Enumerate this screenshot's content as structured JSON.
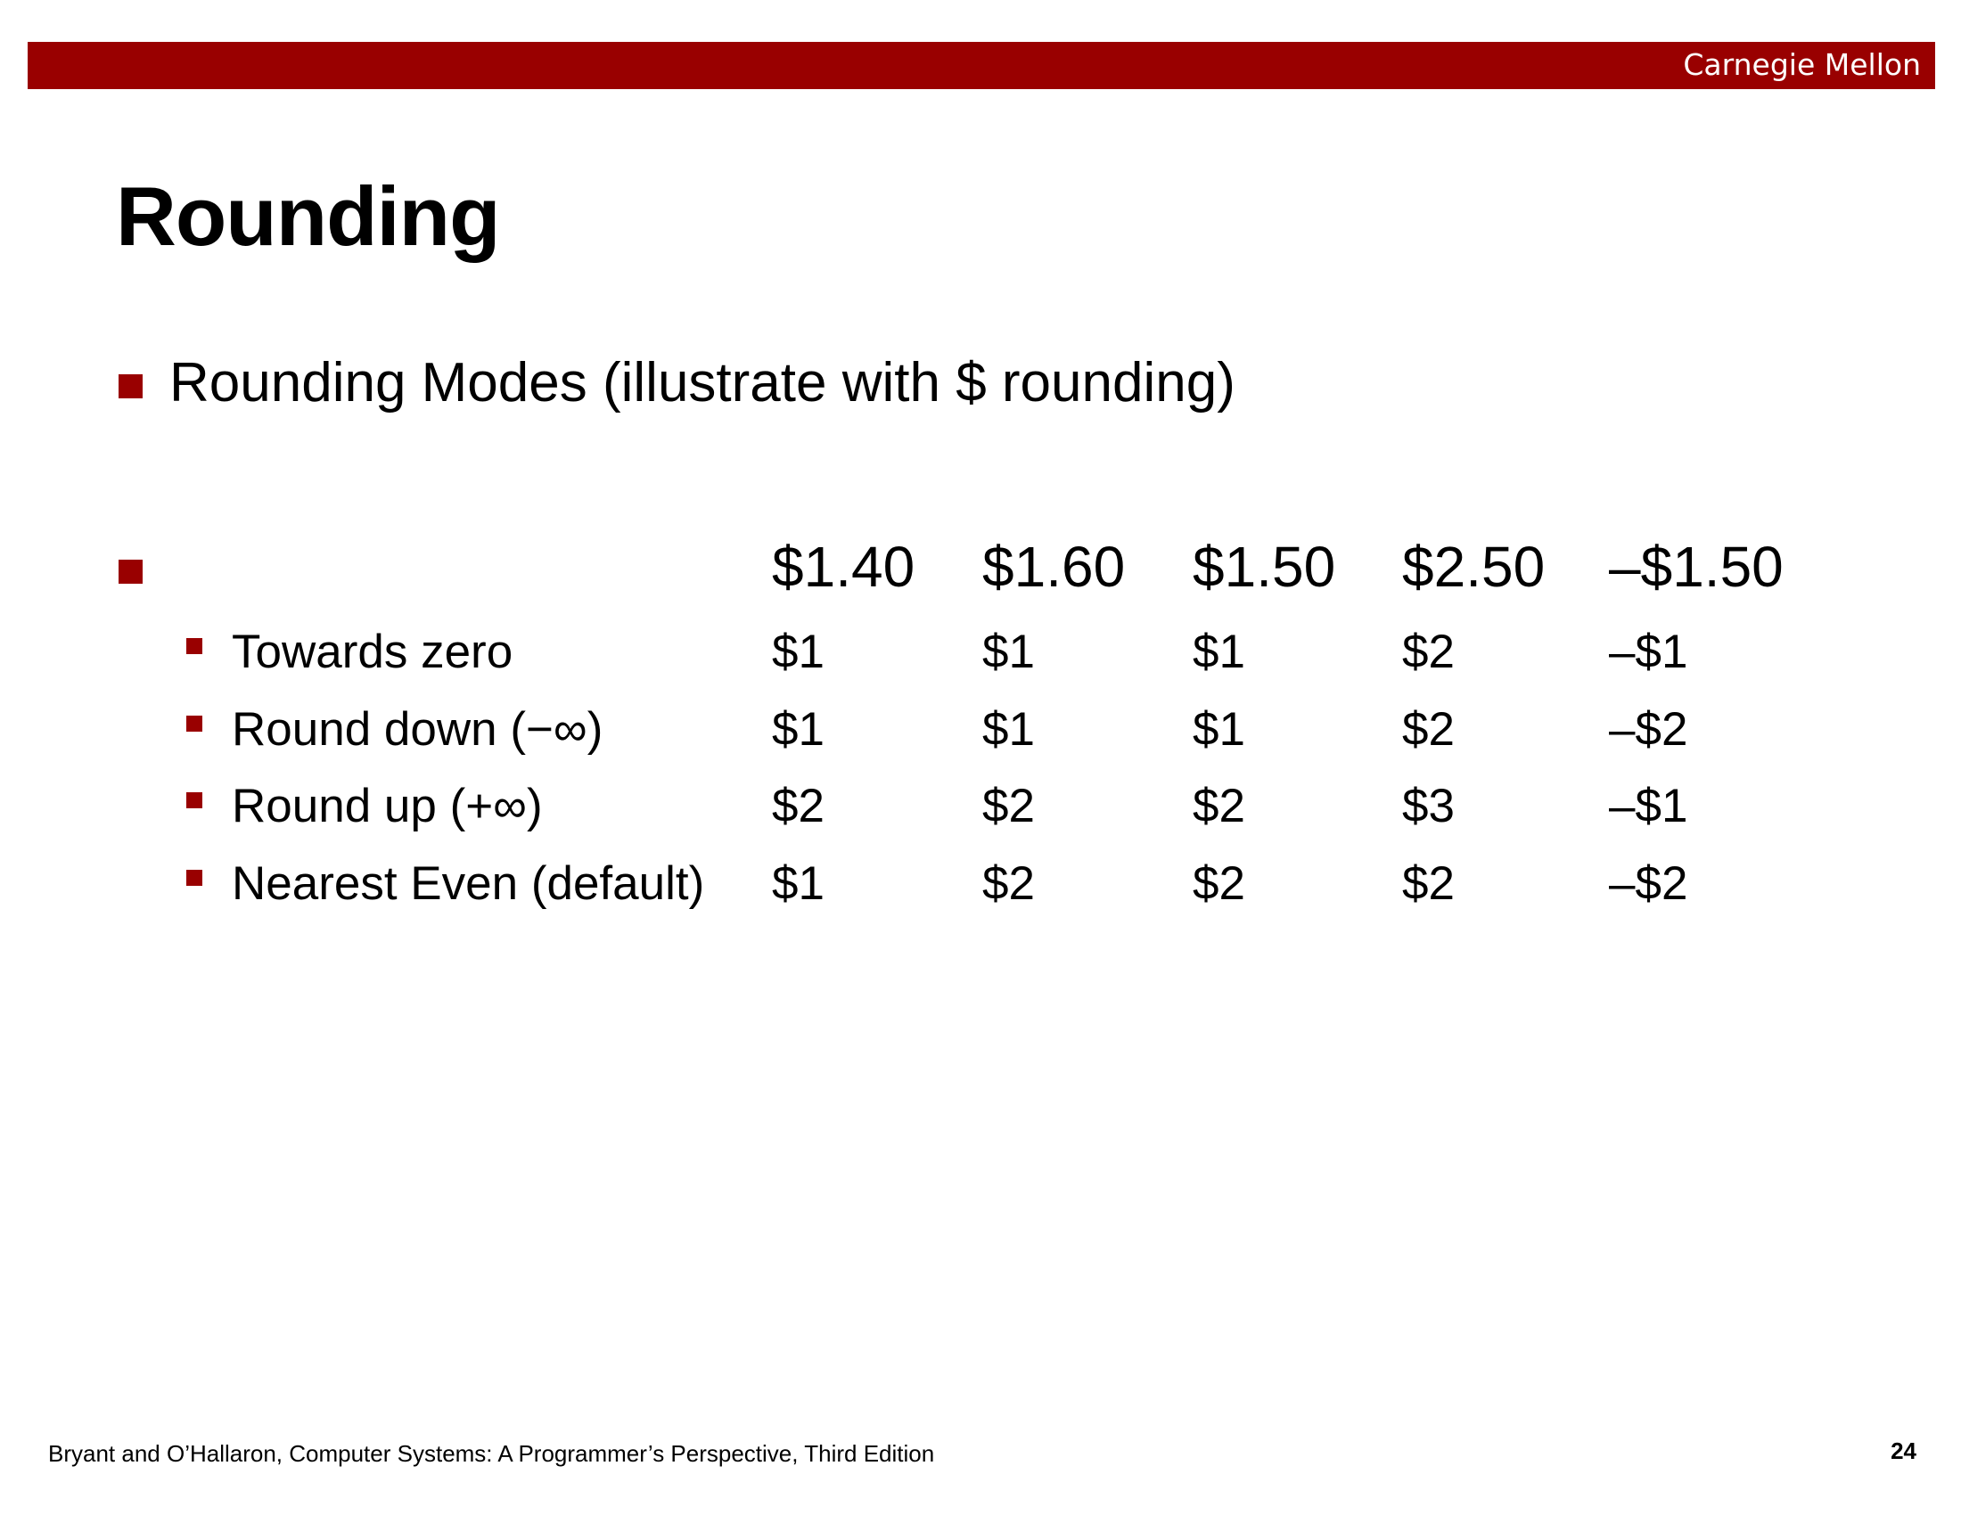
{
  "header": {
    "brand": "Carnegie Mellon",
    "accent_color": "#990000"
  },
  "slide": {
    "title": "Rounding",
    "bullet1": "Rounding Modes (illustrate with $ rounding)",
    "table": {
      "columns": [
        "$1.40",
        "$1.60",
        "$1.50",
        "$2.50",
        "–$1.50"
      ],
      "rows": [
        {
          "label": "Towards zero",
          "values": [
            "$1",
            "$1",
            "$1",
            "$2",
            "–$1"
          ]
        },
        {
          "label": "Round down (−∞)",
          "values": [
            "$1",
            "$1",
            "$1",
            "$2",
            "–$2"
          ]
        },
        {
          "label": "Round up (+∞)",
          "values": [
            "$2",
            "$2",
            "$2",
            "$3",
            "–$1"
          ]
        },
        {
          "label": "Nearest Even (default)",
          "values": [
            "$1",
            "$2",
            "$2",
            "$2",
            "–$2"
          ]
        }
      ]
    }
  },
  "footer": {
    "citation": "Bryant and O’Hallaron, Computer Systems: A Programmer’s Perspective, Third Edition",
    "page_number": "24"
  }
}
